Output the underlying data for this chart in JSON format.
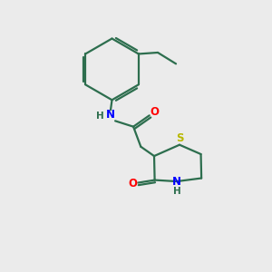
{
  "background_color": "#ebebeb",
  "bond_color": "#2d6e4e",
  "N_color": "#0000ff",
  "O_color": "#ff0000",
  "S_color": "#b8b800",
  "line_width": 1.6,
  "figsize": [
    3.0,
    3.0
  ],
  "dpi": 100,
  "xlim": [
    0,
    10
  ],
  "ylim": [
    0,
    10
  ]
}
